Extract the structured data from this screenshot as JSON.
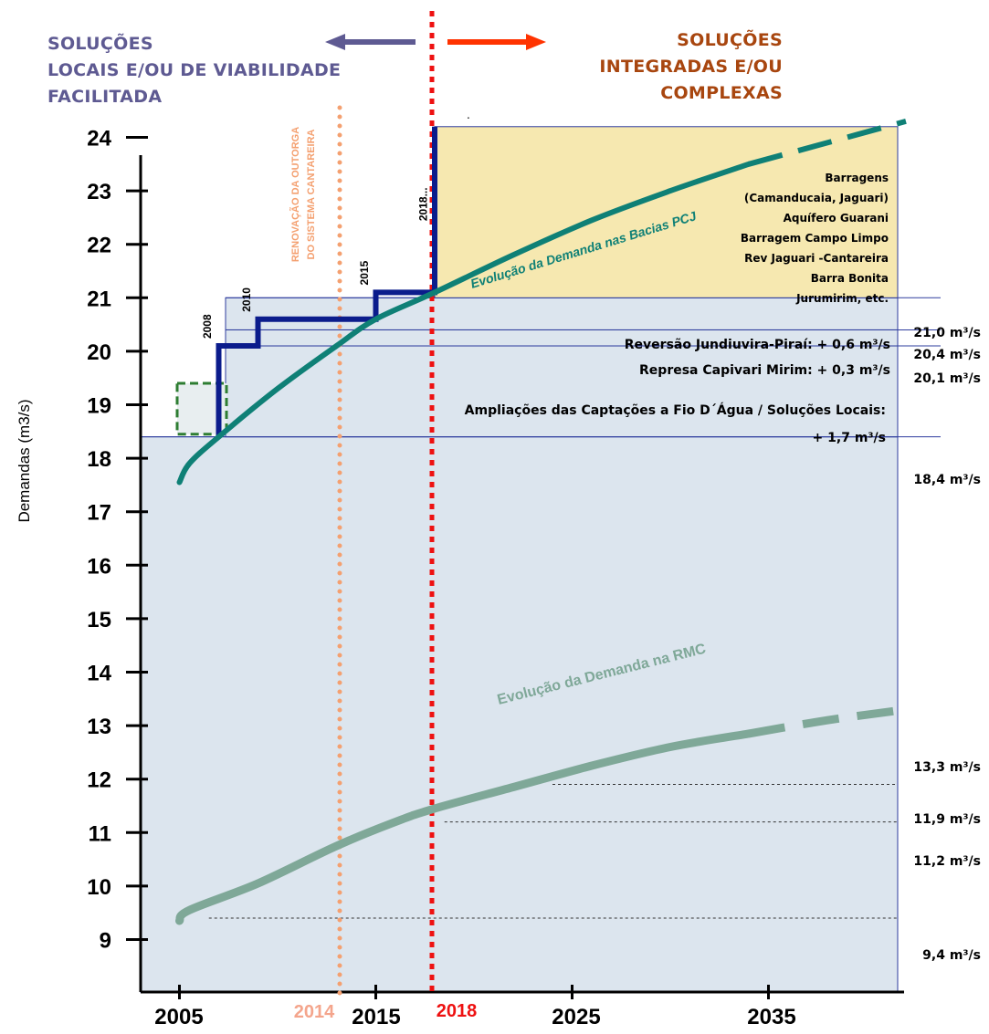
{
  "header": {
    "left_lines": [
      "SOLUÇÕES",
      "LOCAIS E/OU DE VIABILIDADE",
      "FACILITADA"
    ],
    "right_lines": [
      "SOLUÇÕES",
      "INTEGRADAS E/OU",
      "COMPLEXAS"
    ],
    "stray_dot": ".",
    "left_arrow_color": "#5E5A92",
    "right_arrow_color": "#FF3300"
  },
  "chart_data": {
    "type": "line",
    "ylabel": "Demandas (m3/s)",
    "ylim": [
      8.6,
      24.4
    ],
    "yticks": [
      9,
      10,
      11,
      12,
      13,
      14,
      15,
      16,
      17,
      18,
      19,
      20,
      21,
      22,
      23,
      24
    ],
    "xlim": [
      2004,
      2043
    ],
    "xticks": [
      {
        "value": 2005,
        "label": "2005",
        "color": "#000000"
      },
      {
        "value": 2014,
        "label": "2014",
        "color": "#F4A58C"
      },
      {
        "value": 2015,
        "label": "2015",
        "color": "#000000"
      },
      {
        "value": 2018,
        "label": "2018",
        "color": "#EE1111"
      },
      {
        "value": 2025,
        "label": "2025",
        "color": "#000000"
      },
      {
        "value": 2035,
        "label": "2035",
        "color": "#000000"
      }
    ],
    "colors": {
      "base_area": "#DCE5EE",
      "band_border": "#2E3C9E",
      "yellow_box": "#F6E8B0",
      "supply_step": "#0B1C8C",
      "pcj_curve": "#0F8076",
      "rmc_curve": "#7FA898",
      "orange_line": "#F4A070",
      "red_line": "#EE1111",
      "green_box": "#2E7D32"
    },
    "bands": [
      {
        "label": "Reversão Jundiuvira-Piraí: + 0,6 m³/s",
        "from": 20.4,
        "to": 21.0
      },
      {
        "label": "Represa Capivari Mirim: + 0,3 m³/s",
        "from": 20.1,
        "to": 20.4
      },
      {
        "label": "Ampliações das Captações a Fio D´Água / Soluções Locais:",
        "label2": "+ 1,7 m³/s",
        "from": 18.4,
        "to": 20.1
      }
    ],
    "yellow_box": {
      "x_from": 2018,
      "y_from": 21.0,
      "y_to": 24.2,
      "lines": [
        "Barragens",
        "(Camanducaia, Jaguari)",
        "Aquífero Guarani",
        "Barragem Campo Limpo",
        "Rev Jaguari -Cantareira",
        "Barra Bonita",
        "Jurumirim, etc."
      ]
    },
    "right_labels": [
      {
        "value": 21.0,
        "text": "21,0 m³/s"
      },
      {
        "value": 20.4,
        "text": "20,4 m³/s"
      },
      {
        "value": 20.1,
        "text": "20,1 m³/s"
      },
      {
        "value": 18.4,
        "text": "18,4 m³/s"
      },
      {
        "value": 13.3,
        "text": "13,3 m³/s"
      },
      {
        "value": 11.9,
        "text": "11,9 m³/s"
      },
      {
        "value": 11.2,
        "text": "11,2 m³/s"
      },
      {
        "value": 9.4,
        "text": "9,4 m³/s"
      }
    ],
    "dashed_refs": [
      {
        "y": 11.9,
        "x_from": 2024,
        "x_to": 2041
      },
      {
        "y": 11.2,
        "x_from": 2018.5,
        "x_to": 2041
      },
      {
        "y": 9.4,
        "x_from": 2006.5,
        "x_to": 2041
      }
    ],
    "supply_step": {
      "points": [
        [
          2007,
          18.4
        ],
        [
          2007,
          20.1
        ],
        [
          2009,
          20.1
        ],
        [
          2009,
          20.6
        ],
        [
          2015,
          20.6
        ],
        [
          2015,
          21.1
        ],
        [
          2018,
          21.1
        ],
        [
          2018,
          24.2
        ]
      ],
      "labels": [
        {
          "text": "2008",
          "x": 2006.5,
          "y": 20.1
        },
        {
          "text": "2010",
          "x": 2008.5,
          "y": 20.6
        },
        {
          "text": "2015",
          "x": 2014.5,
          "y": 21.1
        },
        {
          "text": "2018...",
          "x": 2017.5,
          "y": 22.3
        }
      ]
    },
    "green_box": {
      "x_from": 2005,
      "x_to": 2007.5,
      "y_from": 18.45,
      "y_to": 19.4
    },
    "series": [
      {
        "name": "Evolução da Demanda nas Bacias PCJ",
        "solid": [
          [
            2005,
            17.55
          ],
          [
            2005.5,
            17.9
          ],
          [
            2007,
            18.4
          ],
          [
            2010,
            19.3
          ],
          [
            2013,
            20.1
          ],
          [
            2015,
            20.6
          ],
          [
            2018,
            21.1
          ],
          [
            2022,
            21.8
          ],
          [
            2026,
            22.45
          ],
          [
            2030,
            23.0
          ],
          [
            2034,
            23.5
          ]
        ],
        "dashed": [
          [
            2034,
            23.5
          ],
          [
            2038,
            23.9
          ],
          [
            2042,
            24.3
          ]
        ]
      },
      {
        "name": "Evolução da Demanda na RMC",
        "solid": [
          [
            2005,
            9.35
          ],
          [
            2005.5,
            9.55
          ],
          [
            2009,
            10.05
          ],
          [
            2013,
            10.75
          ],
          [
            2016,
            11.2
          ],
          [
            2018,
            11.45
          ],
          [
            2022,
            11.85
          ],
          [
            2026,
            12.25
          ],
          [
            2030,
            12.6
          ],
          [
            2034,
            12.85
          ]
        ],
        "dashed": [
          [
            2034,
            12.85
          ],
          [
            2038,
            13.1
          ],
          [
            2042,
            13.3
          ]
        ]
      }
    ],
    "vlines": [
      {
        "x": 2013,
        "label_lines": [
          "RENOVAÇÃO DA OUTORGA",
          "DO SISTEMA CANTAREIRA"
        ]
      },
      {
        "x": 2018
      }
    ]
  }
}
